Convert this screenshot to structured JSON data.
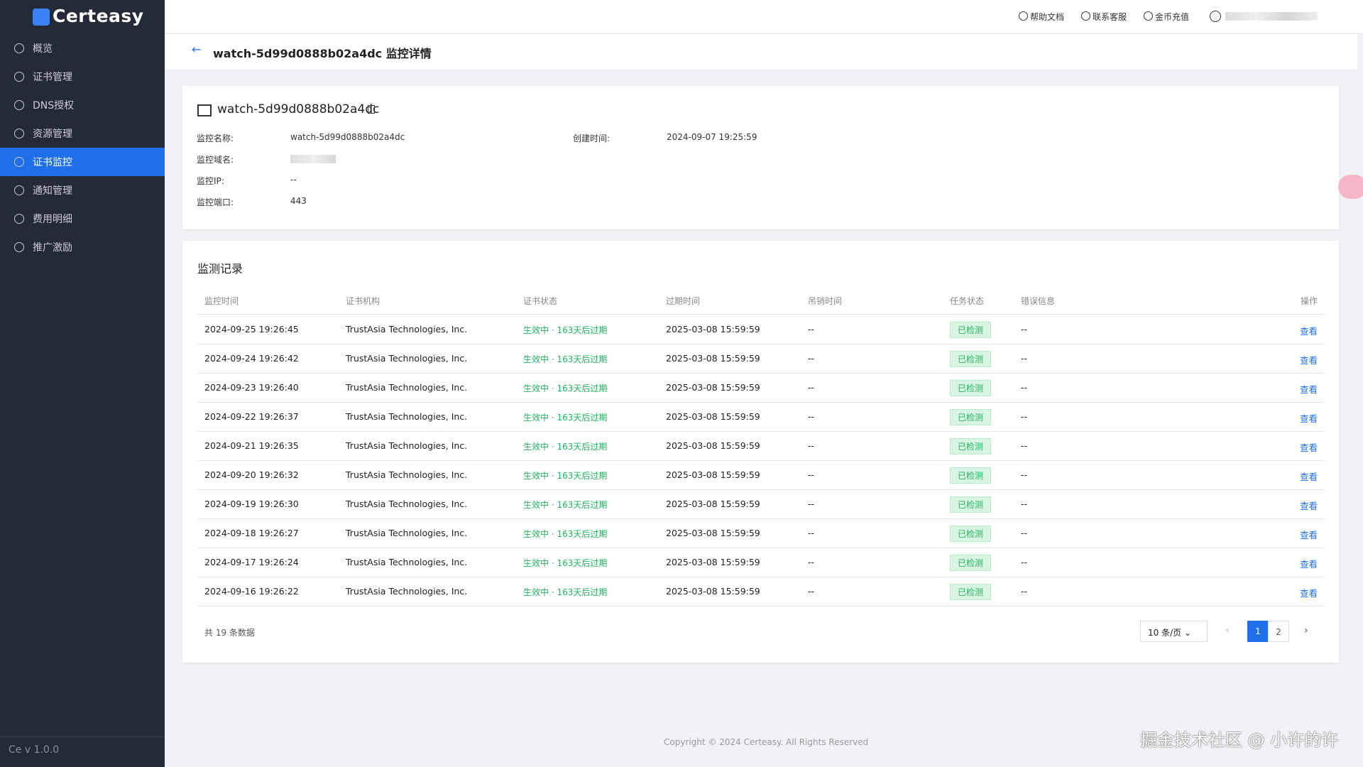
{
  "sidebar": {
    "brand": "Certeasy",
    "menu": [
      "概览",
      "证书管理",
      "DNS授权",
      "资源管理",
      "证书监控",
      "通知管理",
      "费用明细",
      "推广激励"
    ],
    "active_index": 4,
    "version": "Ce v 1.0.0"
  },
  "header": {
    "links": [
      "帮助文档",
      "联系客服",
      "金币充值"
    ]
  },
  "page": {
    "title": "watch-5d99d0888b02a4dc 监控详情"
  },
  "detail": {
    "name": "watch-5d99d0888b02a4dc",
    "fields": [
      {
        "label": "监控名称:",
        "value": "watch-5d99d0888b02a4dc"
      },
      {
        "label": "创建时间:",
        "value": "2024-09-07 19:25:59"
      },
      {
        "label": "监控域名:"
      },
      {
        "label": "监控IP:",
        "value": "--"
      },
      {
        "label": "监控端口:",
        "value": 443
      }
    ]
  },
  "records": {
    "title": "监测记录",
    "columns": [
      "监控时间",
      "证书机构",
      "证书状态",
      "过期时间",
      "吊销时间",
      "任务状态",
      "错误信息",
      "操作"
    ],
    "rows": [
      [
        "2024-09-25 19:26:45",
        "TrustAsia Technologies, Inc.",
        "生效中 · 163天后过期",
        "2025-03-08 15:59:59",
        "--",
        "已检测",
        "--",
        "查看"
      ],
      [
        "2024-09-24 19:26:42",
        "TrustAsia Technologies, Inc.",
        "生效中 · 163天后过期",
        "2025-03-08 15:59:59",
        "--",
        "已检测",
        "--",
        "查看"
      ],
      [
        "2024-09-23 19:26:40",
        "TrustAsia Technologies, Inc.",
        "生效中 · 163天后过期",
        "2025-03-08 15:59:59",
        "--",
        "已检测",
        "--",
        "查看"
      ],
      [
        "2024-09-22 19:26:37",
        "TrustAsia Technologies, Inc.",
        "生效中 · 163天后过期",
        "2025-03-08 15:59:59",
        "--",
        "已检测",
        "--",
        "查看"
      ],
      [
        "2024-09-21 19:26:35",
        "TrustAsia Technologies, Inc.",
        "生效中 · 163天后过期",
        "2025-03-08 15:59:59",
        "--",
        "已检测",
        "--",
        "查看"
      ],
      [
        "2024-09-20 19:26:32",
        "TrustAsia Technologies, Inc.",
        "生效中 · 163天后过期",
        "2025-03-08 15:59:59",
        "--",
        "已检测",
        "--",
        "查看"
      ],
      [
        "2024-09-19 19:26:30",
        "TrustAsia Technologies, Inc.",
        "生效中 · 163天后过期",
        "2025-03-08 15:59:59",
        "--",
        "已检测",
        "--",
        "查看"
      ],
      [
        "2024-09-18 19:26:27",
        "TrustAsia Technologies, Inc.",
        "生效中 · 163天后过期",
        "2025-03-08 15:59:59",
        "--",
        "已检测",
        "--",
        "查看"
      ],
      [
        "2024-09-17 19:26:24",
        "TrustAsia Technologies, Inc.",
        "生效中 · 163天后过期",
        "2025-03-08 15:59:59",
        "--",
        "已检测",
        "--",
        "查看"
      ],
      [
        "2024-09-16 19:26:22",
        "TrustAsia Technologies, Inc.",
        "生效中 · 163天后过期",
        "2025-03-08 15:59:59",
        "--",
        "已检测",
        "--",
        "查看"
      ]
    ],
    "total_text": "共 19 条数据",
    "page_size": "10 条/页",
    "pages": [
      1,
      2
    ],
    "current_page": 1
  },
  "footer": {
    "copyright": "Copyright © 2024 Certeasy. All Rights Reserved",
    "watermark": "掘金技术社区 @ 小许的许"
  }
}
